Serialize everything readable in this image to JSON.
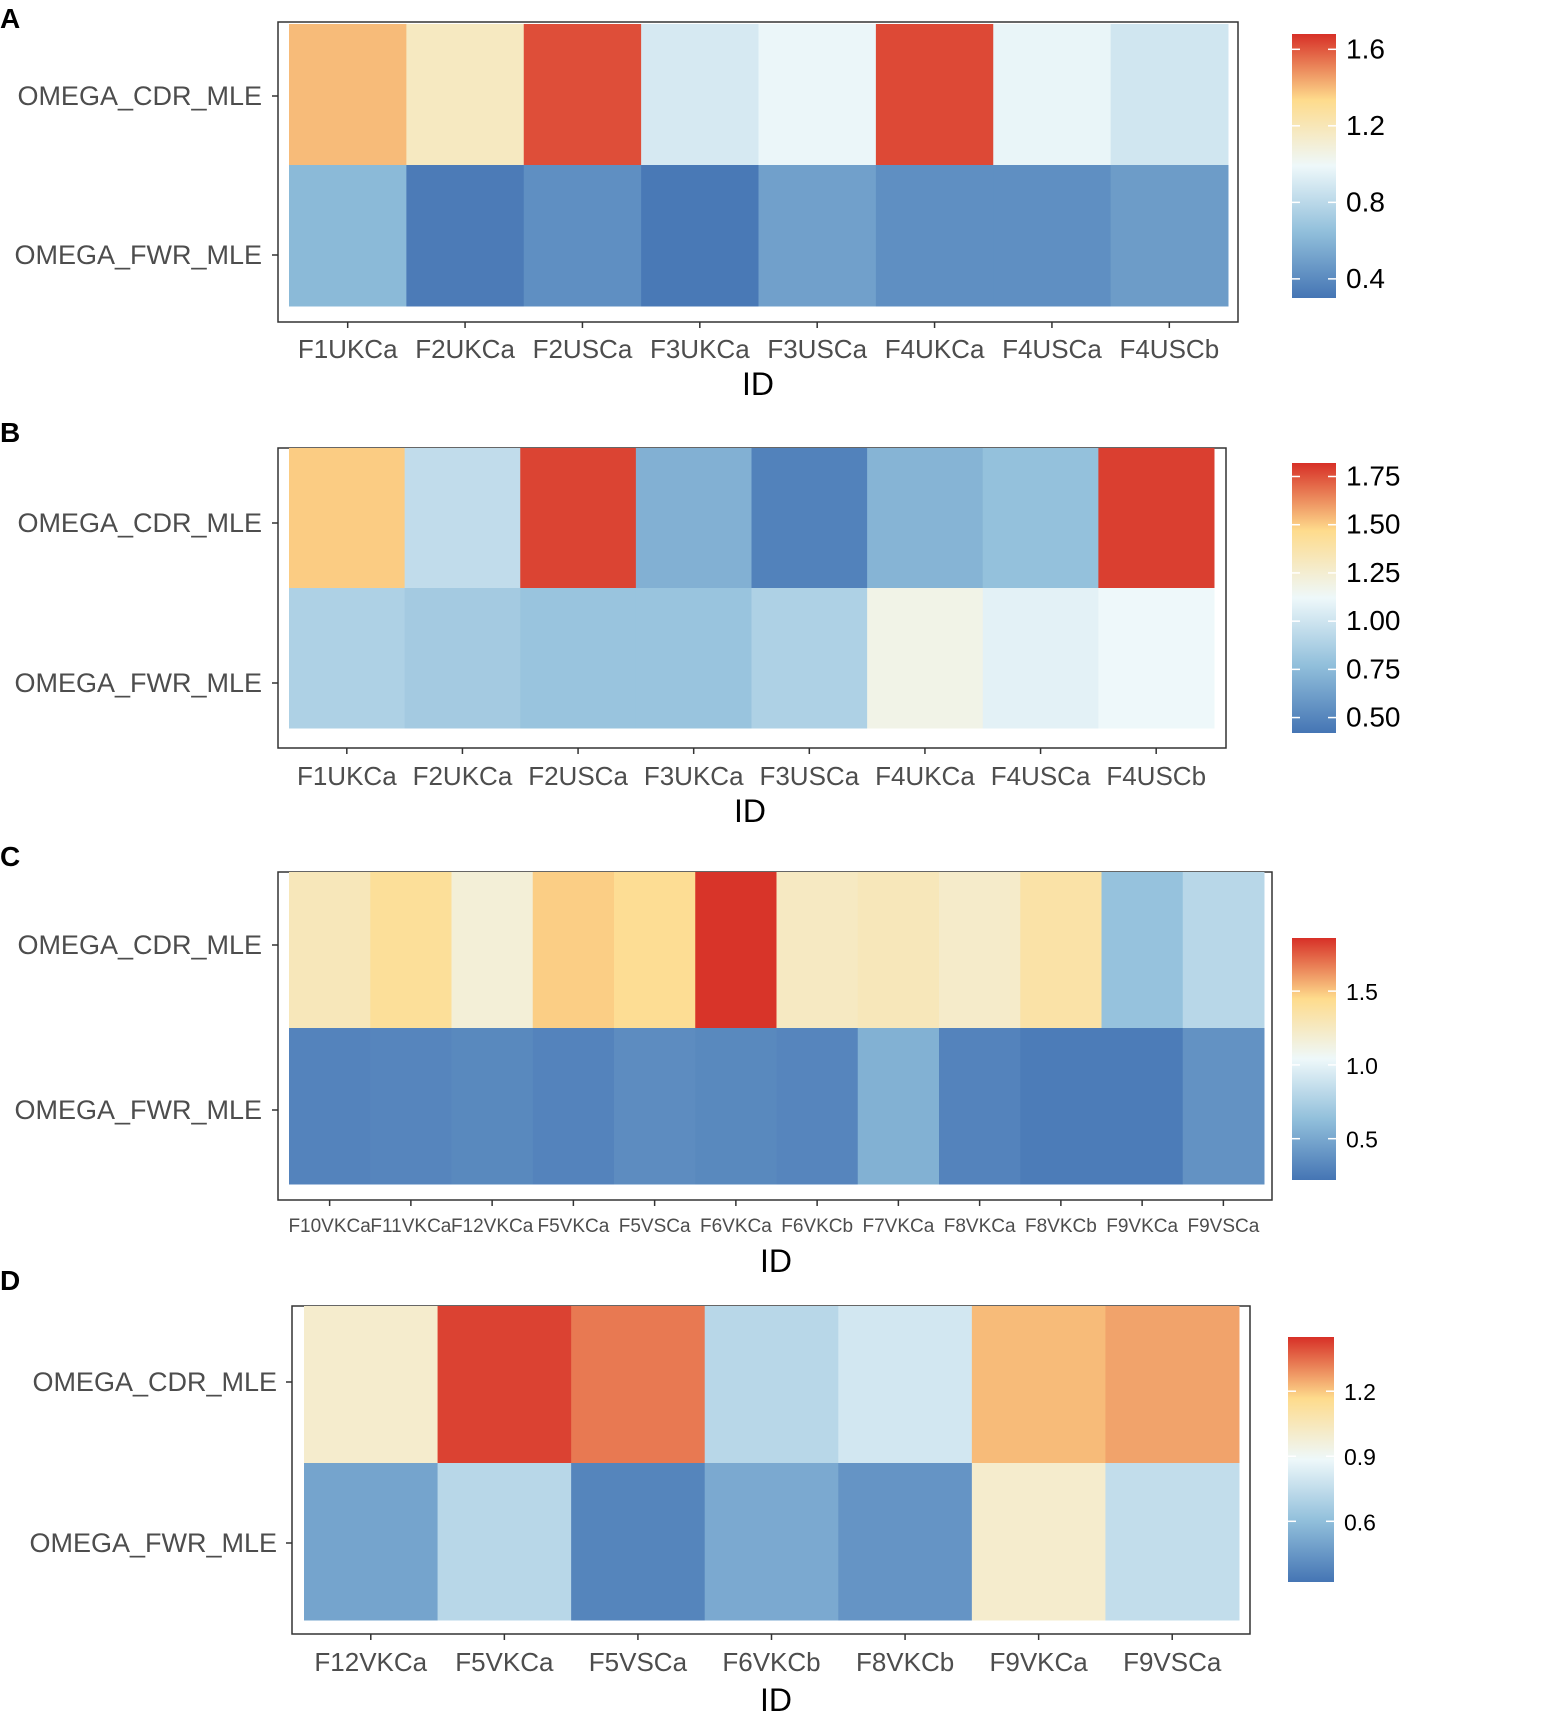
{
  "chart_data": [
    {
      "type": "heatmap",
      "panel": "A",
      "xlabel": "ID",
      "rows": [
        "OMEGA_CDR_MLE",
        "OMEGA_FWR_MLE"
      ],
      "categories": [
        "F1UKCa",
        "F2UKCa",
        "F2USCa",
        "F3UKCa",
        "F3USCa",
        "F4UKCa",
        "F4USCa",
        "F4USCb"
      ],
      "values": [
        [
          1.4,
          1.17,
          1.62,
          0.9,
          0.98,
          1.63,
          0.97,
          0.88
        ],
        [
          0.62,
          0.33,
          0.42,
          0.32,
          0.5,
          0.42,
          0.42,
          0.48
        ]
      ],
      "scale": {
        "min": 0.3,
        "max": 1.68
      },
      "legend_ticks": [
        0.4,
        0.8,
        1.2,
        1.6
      ],
      "legend_labels": [
        "0.4",
        "0.8",
        "1.2",
        "1.6"
      ]
    },
    {
      "type": "heatmap",
      "panel": "B",
      "xlabel": "ID",
      "rows": [
        "OMEGA_CDR_MLE",
        "OMEGA_FWR_MLE"
      ],
      "categories": [
        "F1UKCa",
        "F2UKCa",
        "F2USCa",
        "F3UKCa",
        "F3USCa",
        "F4UKCa",
        "F4USCa",
        "F4USCb"
      ],
      "values": [
        [
          1.5,
          0.95,
          1.78,
          0.7,
          0.48,
          0.72,
          0.78,
          1.79
        ],
        [
          0.88,
          0.84,
          0.8,
          0.8,
          0.88,
          1.18,
          1.08,
          1.12
        ]
      ],
      "scale": {
        "min": 0.42,
        "max": 1.82
      },
      "legend_ticks": [
        0.5,
        0.75,
        1.0,
        1.25,
        1.5,
        1.75
      ],
      "legend_labels": [
        "0.50",
        "0.75",
        "1.00",
        "1.25",
        "1.50",
        "1.75"
      ]
    },
    {
      "type": "heatmap",
      "panel": "C",
      "xlabel": "ID",
      "rows": [
        "OMEGA_CDR_MLE",
        "OMEGA_FWR_MLE"
      ],
      "categories": [
        "F10VKCa",
        "F11VKCa",
        "F12VKCa",
        "F5VKCa",
        "F5VSCa",
        "F6VKCa",
        "F6VKCb",
        "F7VKCa",
        "F8VKCa",
        "F8VKCb",
        "F9VKCa",
        "F9VSCa"
      ],
      "values": [
        [
          1.28,
          1.4,
          1.17,
          1.48,
          1.42,
          1.85,
          1.25,
          1.28,
          1.22,
          1.35,
          0.65,
          0.8
        ],
        [
          0.3,
          0.31,
          0.33,
          0.3,
          0.35,
          0.33,
          0.31,
          0.55,
          0.3,
          0.26,
          0.26,
          0.38
        ]
      ],
      "scale": {
        "min": 0.22,
        "max": 1.86
      },
      "legend_ticks": [
        0.5,
        1.0,
        1.5
      ],
      "legend_labels": [
        "0.5",
        "1.0",
        "1.5"
      ]
    },
    {
      "type": "heatmap",
      "panel": "D",
      "xlabel": "ID",
      "rows": [
        "OMEGA_CDR_MLE",
        "OMEGA_FWR_MLE"
      ],
      "categories": [
        "F12VKCa",
        "F5VKCa",
        "F5VSCa",
        "F6VKCb",
        "F8VKCb",
        "F9VKCa",
        "F9VSCa"
      ],
      "values": [
        [
          1.0,
          1.42,
          1.33,
          0.72,
          0.8,
          1.22,
          1.26
        ],
        [
          0.5,
          0.72,
          0.38,
          0.52,
          0.44,
          1.0,
          0.75
        ]
      ],
      "scale": {
        "min": 0.32,
        "max": 1.45
      },
      "legend_ticks": [
        0.6,
        0.9,
        1.2
      ],
      "legend_labels": [
        "0.6",
        "0.9",
        "1.2"
      ]
    }
  ]
}
